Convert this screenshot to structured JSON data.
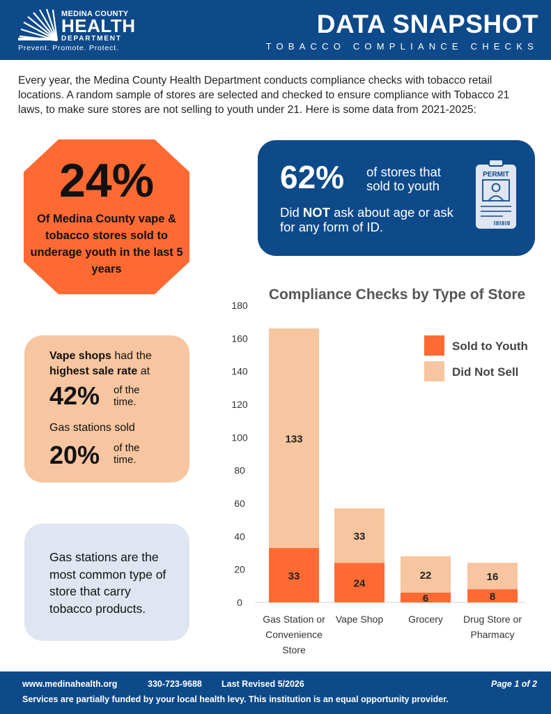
{
  "header": {
    "logo_county": "MEDINA COUNTY",
    "logo_health": "HEALTH",
    "logo_department": "DEPARTMENT",
    "logo_tagline": "Prevent. Promote. Protect.",
    "title": "DATA SNAPSHOT",
    "subtitle": "TOBACCO COMPLIANCE CHECKS"
  },
  "intro": "Every year, the Medina County Health Department conducts compliance checks with tobacco retail locations. A random sample of stores are selected and checked to ensure compliance with Tobacco 21 laws, to make sure stores are not selling to youth under 21. Here is some data from 2021-2025:",
  "stat_octagon": {
    "value": "24%",
    "text": "Of Medina County vape & tobacco stores sold to underage youth in the last 5 years"
  },
  "stat_blue": {
    "value": "62%",
    "side": "of stores that sold to youth",
    "line_pre": "Did ",
    "line_bold": "NOT",
    "line_post": " ask about age or ask for any form of ID.",
    "permit_label": "PERMIT",
    "icon": "permit-card-icon"
  },
  "stat_peach": {
    "line1_bold_a": "Vape shops",
    "line1_mid": " had the ",
    "line1_bold_b": "highest sale rate",
    "line1_end": " at",
    "value1": "42%",
    "value1_suffix": "of the time.",
    "line2": "Gas stations sold",
    "value2": "20%",
    "value2_suffix": "of the time."
  },
  "stat_gray": {
    "text": "Gas stations are the most common type of store that carry tobacco products."
  },
  "chart_data": {
    "type": "bar",
    "stacked": true,
    "title": "Compliance Checks by Type of Store",
    "categories": [
      [
        "Gas Station or",
        "Convenience",
        "Store"
      ],
      [
        "Vape Shop"
      ],
      [
        "Grocery"
      ],
      [
        "Drug Store or",
        "Pharmacy"
      ]
    ],
    "series": [
      {
        "name": "Sold to Youth",
        "values": [
          33,
          24,
          6,
          8
        ],
        "color": "#ff6a33"
      },
      {
        "name": "Did Not Sell",
        "values": [
          133,
          33,
          22,
          16
        ],
        "color": "#f7c59f"
      }
    ],
    "ylim": [
      0,
      180
    ],
    "yticks": [
      0,
      20,
      40,
      60,
      80,
      100,
      120,
      140,
      160,
      180
    ],
    "legend_position": "top-right",
    "grid": false
  },
  "footer": {
    "website": "www.medinahealth.org",
    "phone": "330-723-9688",
    "revised": "Last Revised 5/2026",
    "page": "Page 1 of 2",
    "funding": "Services are partially funded by your local health levy.   This institution is an equal opportunity provider."
  }
}
